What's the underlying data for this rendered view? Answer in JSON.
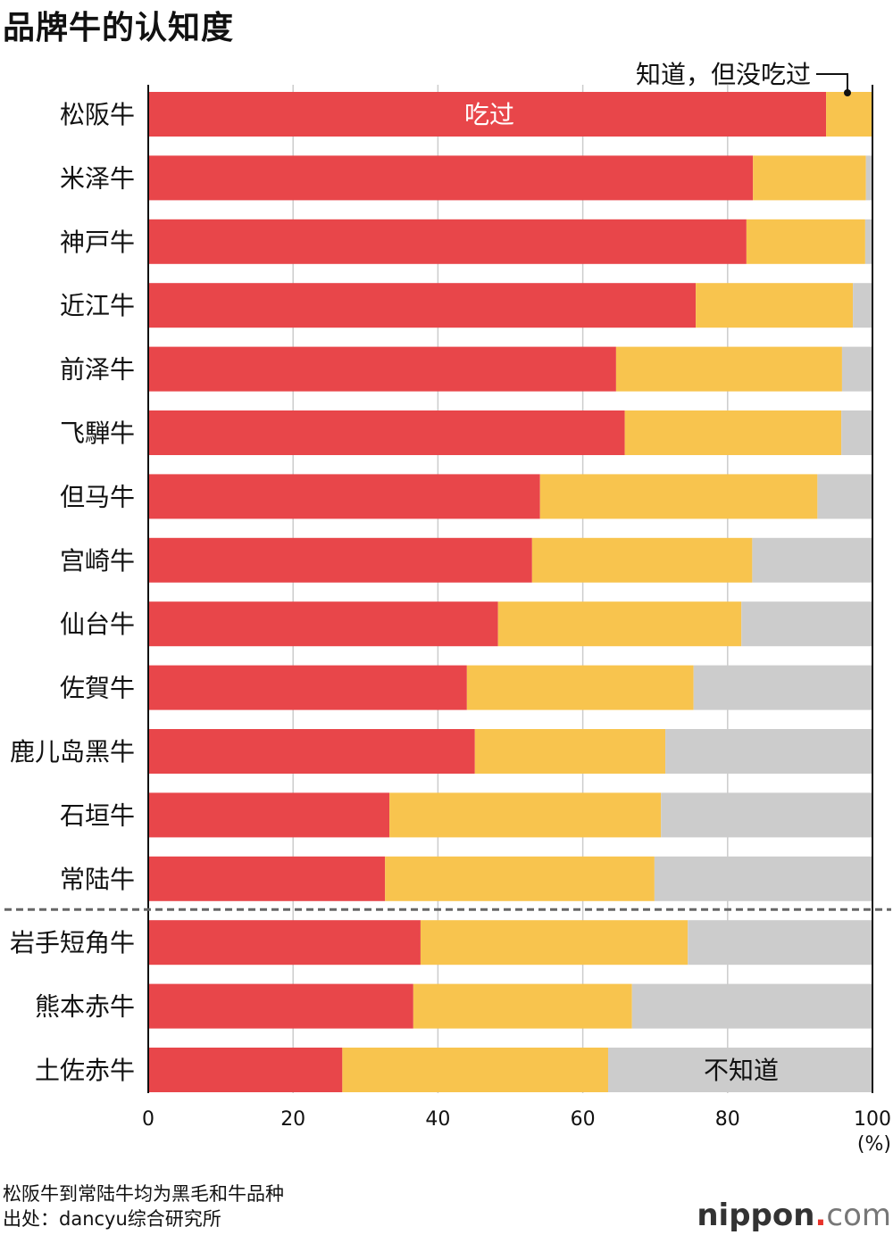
{
  "chart_data": {
    "type": "bar",
    "orientation": "horizontal",
    "stacked": true,
    "title": "品牌牛的认知度",
    "categories": [
      "松阪牛",
      "米泽牛",
      "神戸牛",
      "近江牛",
      "前泽牛",
      "飞騨牛",
      "但马牛",
      "宫崎牛",
      "仙台牛",
      "佐賀牛",
      "鹿儿岛黑牛",
      "石垣牛",
      "常陆牛",
      "岩手短角牛",
      "熊本赤牛",
      "土佐赤牛"
    ],
    "series": [
      {
        "name": "吃过",
        "color": "#e8464a",
        "values": [
          93.6,
          83.5,
          82.6,
          75.6,
          64.6,
          65.8,
          54.1,
          53.0,
          48.3,
          44.0,
          45.1,
          33.3,
          32.7,
          37.6,
          36.6,
          26.8
        ]
      },
      {
        "name": "知道，但没吃过",
        "color": "#f8c44e",
        "values": [
          6.4,
          15.6,
          16.4,
          21.7,
          31.2,
          29.9,
          38.3,
          30.4,
          33.6,
          31.3,
          26.3,
          37.5,
          37.2,
          36.9,
          30.2,
          36.7
        ]
      },
      {
        "name": "不知道",
        "color": "#cccccc",
        "values": [
          0,
          0.9,
          1.0,
          2.7,
          4.2,
          4.3,
          7.6,
          16.6,
          18.1,
          24.7,
          28.6,
          29.2,
          30.1,
          25.5,
          33.2,
          36.5
        ]
      }
    ],
    "xlim": [
      0,
      100
    ],
    "xticks": [
      "0",
      "20",
      "40",
      "60",
      "80",
      "100"
    ],
    "xunit": "(%)",
    "annotation_series1": "吃过",
    "annotation_series2": "知道，但没吃过",
    "annotation_series3": "不知道",
    "grid": true,
    "separator_after_index": 12
  },
  "footnote": "松阪牛到常陆牛均为黑毛和牛品种",
  "source": "出处：dancyu综合研究所",
  "logo": {
    "name": "nippon",
    "dot": ".",
    "suffix": "com"
  }
}
